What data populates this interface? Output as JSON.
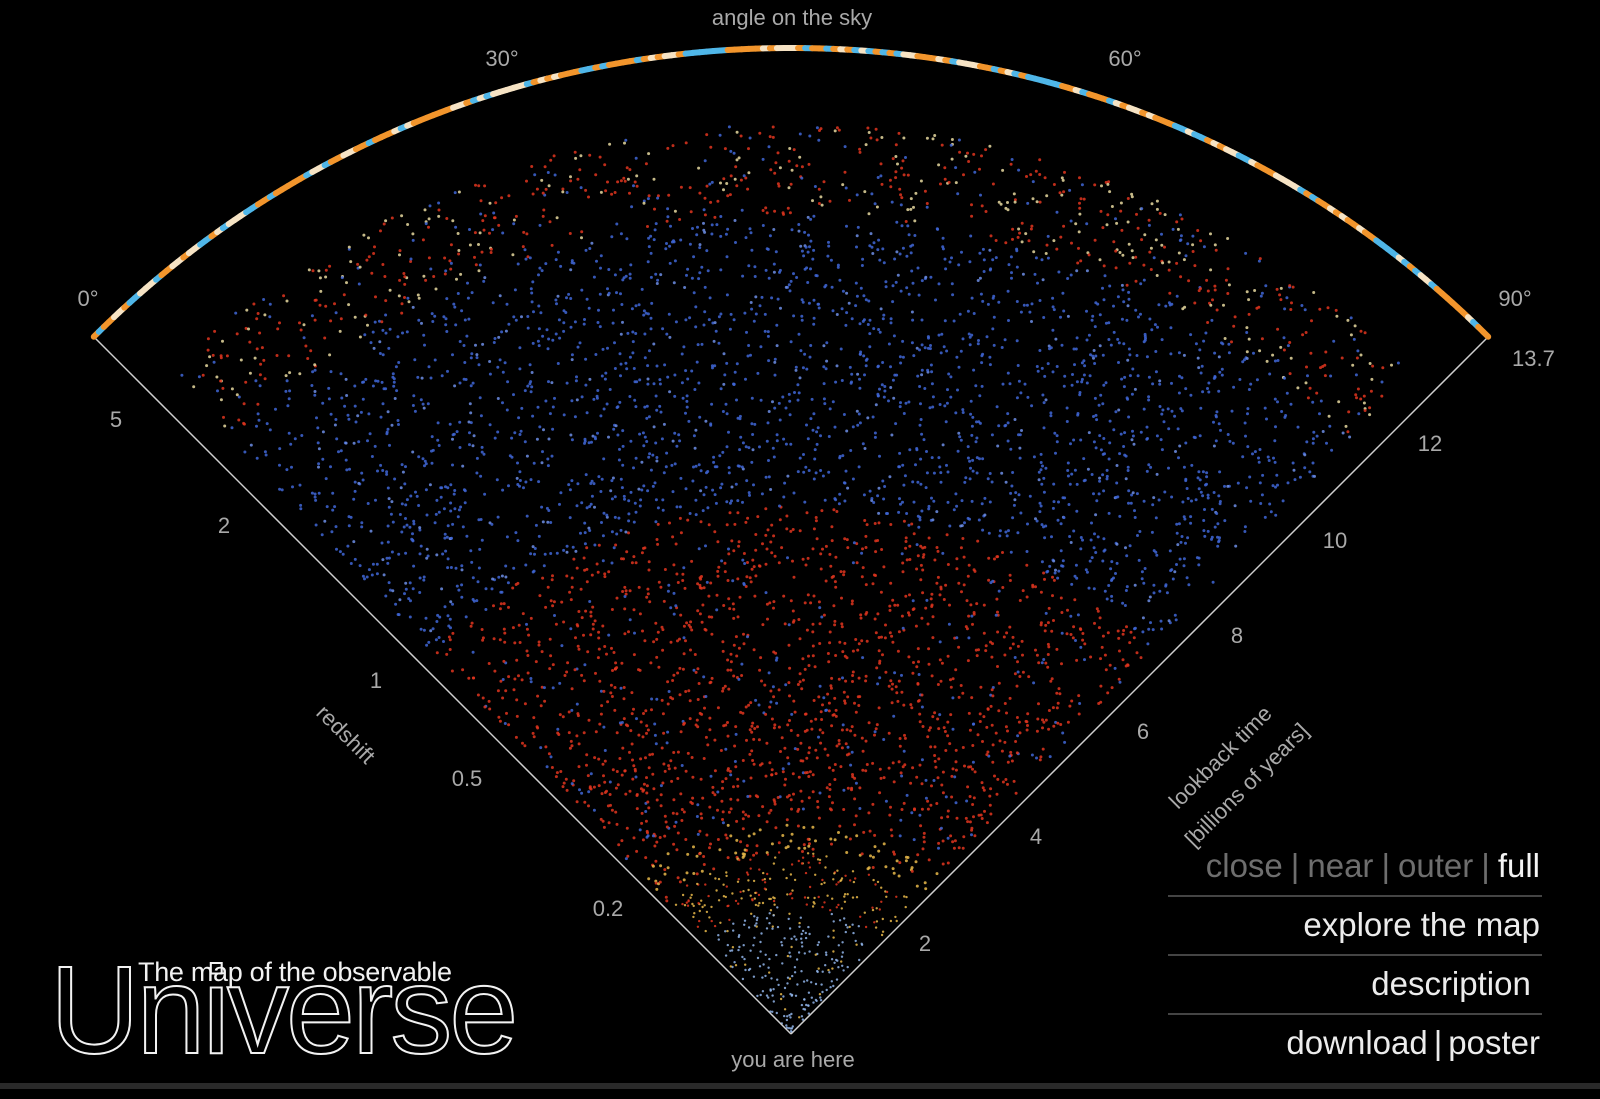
{
  "sky_axis": {
    "title": "angle on the sky",
    "ticks": [
      "0°",
      "30°",
      "60°",
      "90°"
    ]
  },
  "redshift_axis": {
    "title": "redshift",
    "ticks": [
      "5",
      "2",
      "1",
      "0.5",
      "0.2"
    ]
  },
  "lookback_axis": {
    "title_line1": "lookback time",
    "title_line2": "[billions of years]",
    "ticks": [
      "13.7",
      "12",
      "10",
      "8",
      "6",
      "4",
      "2"
    ]
  },
  "origin_label": "you are here",
  "branding": {
    "subtitle": "The map of the observable",
    "title": "Universe"
  },
  "menu": {
    "zoom": {
      "close": "close",
      "near": "near",
      "outer": "outer",
      "full": "full",
      "separator": "|",
      "active": "full"
    },
    "explore": "explore the map",
    "description": "description",
    "download": "download",
    "download_sep": "|",
    "poster": "poster"
  },
  "colors": {
    "background": "#000000",
    "near_galaxies": "#8fb3e8",
    "mid_yellow": "#e8b84a",
    "red_galaxies": "#e0351f",
    "blue_quasars": "#3f66d6",
    "cmb_orange": "#f2952c",
    "cmb_blue": "#4fb6e8"
  }
}
